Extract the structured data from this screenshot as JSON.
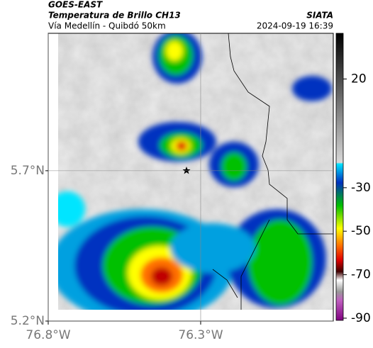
{
  "header": {
    "source": "GOES-EAST",
    "product": "Temperatura de Brillo CH13",
    "region": "Vía Medellín - Quibdó 50km",
    "agency": "SIATA",
    "timestamp": "2024-09-19 16:39"
  },
  "map": {
    "xlim": [
      -76.8,
      -75.865
    ],
    "ylim": [
      5.2,
      6.157
    ],
    "xticks": [
      {
        "value": -76.8,
        "label": "76.8°W"
      },
      {
        "value": -76.3,
        "label": "76.3°W"
      }
    ],
    "yticks": [
      {
        "value": 5.7,
        "label": "5.7°N"
      },
      {
        "value": 5.2,
        "label": "5.2°N"
      }
    ],
    "grid": true
  },
  "colorbar": {
    "lim": [
      -91,
      41
    ],
    "ticks": [
      20,
      -30,
      -50,
      -70,
      -90
    ]
  }
}
